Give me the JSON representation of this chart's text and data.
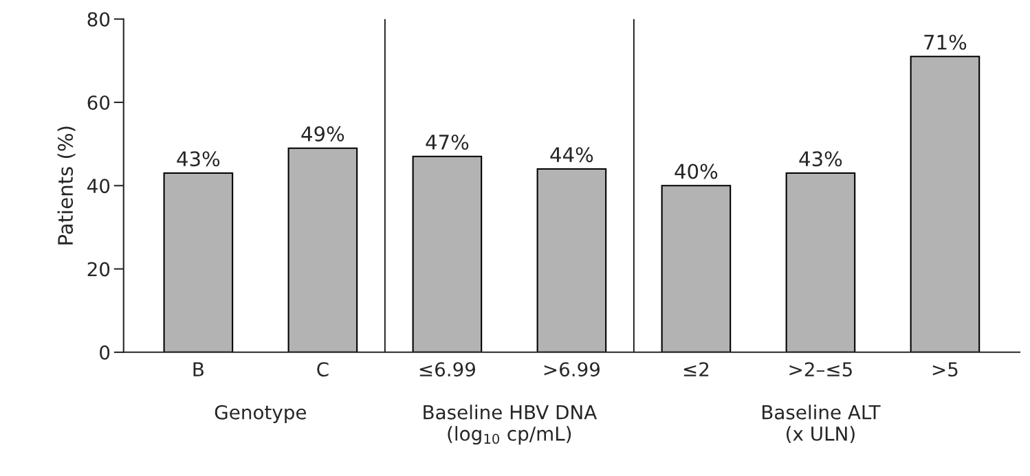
{
  "chart_data": {
    "type": "bar",
    "ylabel": "Patients (%)",
    "categories": [
      "B",
      "C",
      "≤6.99",
      ">6.99",
      "≤2",
      ">2–≤5",
      ">5"
    ],
    "values": [
      43,
      49,
      47,
      44,
      40,
      43,
      71
    ],
    "color": "#b3b3b3",
    "value_labels": [
      "43%",
      "49%",
      "47%",
      "44%",
      "40%",
      "43%",
      "71%"
    ],
    "ylim": [
      0,
      80
    ],
    "yticks": [
      0,
      20,
      40,
      60,
      80
    ],
    "grid": false,
    "annotations": [
      "Genotype",
      "Baseline HBV DNA\n(log$_{10}$ cp/mL)",
      "Baseline ALT\n(x ULN)"
    ]
  }
}
